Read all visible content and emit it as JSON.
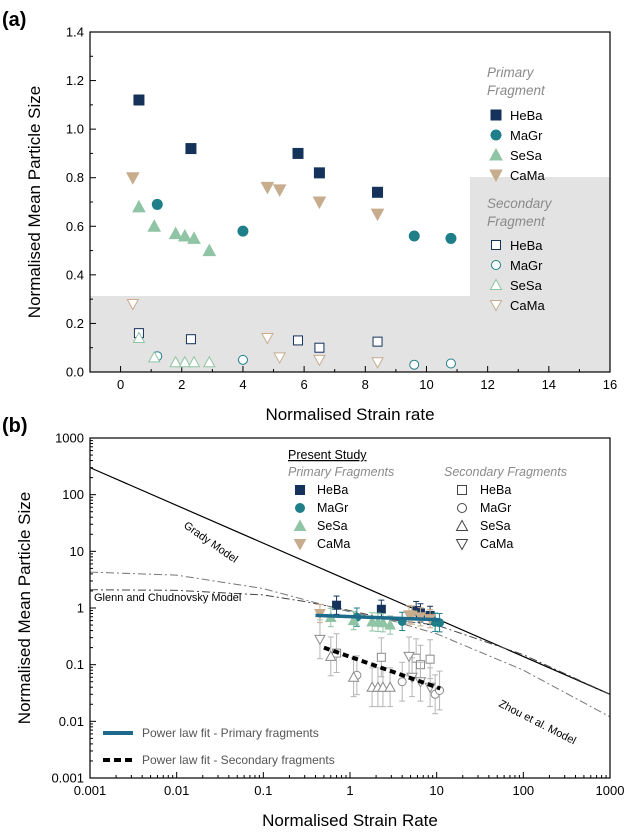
{
  "chart_data": [
    {
      "panel_label": "(a)",
      "type": "scatter",
      "xlabel": "Normalised Strain rate",
      "ylabel": "Normalised Mean Particle Size",
      "xlim": [
        -1,
        16
      ],
      "ylim": [
        0,
        1.4
      ],
      "x_ticks": [
        "0",
        "2",
        "4",
        "6",
        "8",
        "10",
        "12",
        "14",
        "16"
      ],
      "y_ticks": [
        "0.0",
        "0.2",
        "0.4",
        "0.6",
        "0.8",
        "1.0",
        "1.2",
        "1.4"
      ],
      "legend_groups": [
        {
          "title_line1": "Primary",
          "title_line2": "Fragment",
          "names": [
            "HeBa",
            "MaGr",
            "SeSa",
            "CaMa"
          ]
        },
        {
          "title_line1": "Secondary",
          "title_line2": "Fragment",
          "names": [
            "HeBa",
            "MaGr",
            "SeSa",
            "CaMa"
          ]
        }
      ],
      "colors": {
        "HeBa": "#14325a",
        "MaGr": "#1e7f88",
        "SeSa": "#8fc4a4",
        "CaMa": "#c8ac8e"
      },
      "series": [
        {
          "group": "primary",
          "marker": "square",
          "x": [
            0.6,
            2.3,
            5.8,
            6.5,
            8.4
          ],
          "y": [
            1.12,
            0.92,
            0.9,
            0.82,
            0.74
          ]
        },
        {
          "group": "primary",
          "marker": "circle",
          "x": [
            1.2,
            4.0,
            9.6,
            10.8
          ],
          "y": [
            0.69,
            0.58,
            0.56,
            0.55
          ]
        },
        {
          "group": "primary",
          "marker": "triangle-up",
          "x": [
            0.6,
            1.1,
            1.8,
            2.1,
            2.4,
            2.9
          ],
          "y": [
            0.68,
            0.6,
            0.57,
            0.56,
            0.55,
            0.5
          ]
        },
        {
          "group": "primary",
          "marker": "triangle-down",
          "x": [
            0.4,
            4.8,
            5.2,
            6.5,
            8.4
          ],
          "y": [
            0.8,
            0.76,
            0.75,
            0.7,
            0.65
          ]
        },
        {
          "group": "secondary",
          "marker": "square",
          "x": [
            0.6,
            2.3,
            5.8,
            6.5,
            8.4
          ],
          "y": [
            0.16,
            0.135,
            0.13,
            0.1,
            0.125
          ]
        },
        {
          "group": "secondary",
          "marker": "circle",
          "x": [
            1.2,
            4.0,
            9.6,
            10.8
          ],
          "y": [
            0.065,
            0.05,
            0.03,
            0.035
          ]
        },
        {
          "group": "secondary",
          "marker": "triangle-up",
          "x": [
            0.6,
            1.1,
            1.8,
            2.1,
            2.4,
            2.9
          ],
          "y": [
            0.14,
            0.06,
            0.04,
            0.04,
            0.04,
            0.04
          ]
        },
        {
          "group": "secondary",
          "marker": "triangle-down",
          "x": [
            0.4,
            4.8,
            5.2,
            6.5,
            8.4
          ],
          "y": [
            0.28,
            0.14,
            0.06,
            0.05,
            0.04
          ]
        }
      ]
    },
    {
      "panel_label": "(b)",
      "type": "scatter",
      "xscale": "log",
      "yscale": "log",
      "xlabel": "Normalised Strain Rate",
      "ylabel": "Normalised Mean Particle Size",
      "xlim": [
        0.001,
        1000
      ],
      "ylim": [
        0.001,
        1000
      ],
      "x_ticks": [
        "0.001",
        "0.01",
        "0.1",
        "1",
        "10",
        "100",
        "1000"
      ],
      "y_ticks": [
        "0.001",
        "0.01",
        "0.1",
        "1",
        "10",
        "100",
        "1000"
      ],
      "legend_title": "Present Study",
      "legend_groups": [
        {
          "title": "Primary Fragments",
          "names": [
            "HeBa",
            "MaGr",
            "SeSa",
            "CaMa"
          ]
        },
        {
          "title": "Secondary Fragments",
          "names": [
            "HeBa",
            "MaGr",
            "SeSa",
            "CaMa"
          ]
        }
      ],
      "fit_legend": [
        "Power law fit - Primary fragments",
        "Power law fit - Secondary fragments"
      ],
      "model_labels": [
        "Grady Model",
        "Glenn and Chudnovsky Model",
        "Zhou et al. Model"
      ],
      "model_lines": {
        "grady": {
          "x": [
            0.001,
            1000
          ],
          "y": [
            300,
            0.03
          ]
        },
        "glenn_chudnovsky": {
          "x": [
            0.001,
            0.01,
            0.1,
            0.3,
            1,
            3,
            10,
            100,
            1000
          ],
          "y": [
            2.1,
            2.05,
            1.7,
            1.3,
            0.9,
            0.62,
            0.5,
            0.15,
            0.03
          ]
        },
        "zhou": {
          "x": [
            0.001,
            0.01,
            0.1,
            0.3,
            1,
            3,
            10,
            100,
            1000
          ],
          "y": [
            4.3,
            3.8,
            2.2,
            1.4,
            0.85,
            0.6,
            0.35,
            0.08,
            0.012
          ]
        }
      },
      "power_fit_primary": {
        "x": [
          0.4,
          11
        ],
        "y": [
          0.74,
          0.62
        ]
      },
      "power_fit_secondary": {
        "x": [
          0.5,
          11
        ],
        "y": [
          0.2,
          0.038
        ]
      },
      "series": [
        {
          "group": "primary",
          "marker": "square",
          "x": [
            0.7,
            2.3,
            5.8,
            6.5,
            8.4
          ],
          "y": [
            1.12,
            0.95,
            0.9,
            0.82,
            0.74
          ]
        },
        {
          "group": "primary",
          "marker": "circle",
          "x": [
            1.2,
            4.0,
            9.6,
            10.8
          ],
          "y": [
            0.69,
            0.58,
            0.56,
            0.55
          ]
        },
        {
          "group": "primary",
          "marker": "triangle-up",
          "x": [
            0.6,
            1.1,
            1.8,
            2.1,
            2.4,
            2.9
          ],
          "y": [
            0.68,
            0.6,
            0.57,
            0.56,
            0.55,
            0.5
          ]
        },
        {
          "group": "primary",
          "marker": "triangle-down",
          "x": [
            0.45,
            4.8,
            5.2,
            6.5,
            8.4
          ],
          "y": [
            0.8,
            0.76,
            0.75,
            0.7,
            0.65
          ]
        },
        {
          "group": "secondary",
          "marker": "square",
          "x": [
            0.7,
            2.3,
            5.8,
            6.5,
            8.4
          ],
          "y": [
            0.16,
            0.135,
            0.13,
            0.1,
            0.125
          ]
        },
        {
          "group": "secondary",
          "marker": "circle",
          "x": [
            1.2,
            4.0,
            9.6,
            10.8
          ],
          "y": [
            0.065,
            0.05,
            0.03,
            0.035
          ]
        },
        {
          "group": "secondary",
          "marker": "triangle-up",
          "x": [
            0.6,
            1.1,
            1.8,
            2.1,
            2.4,
            2.9
          ],
          "y": [
            0.14,
            0.06,
            0.04,
            0.04,
            0.04,
            0.04
          ]
        },
        {
          "group": "secondary",
          "marker": "triangle-down",
          "x": [
            0.45,
            4.8,
            5.2,
            6.5,
            8.4
          ],
          "y": [
            0.28,
            0.14,
            0.06,
            0.05,
            0.04
          ]
        }
      ]
    }
  ]
}
